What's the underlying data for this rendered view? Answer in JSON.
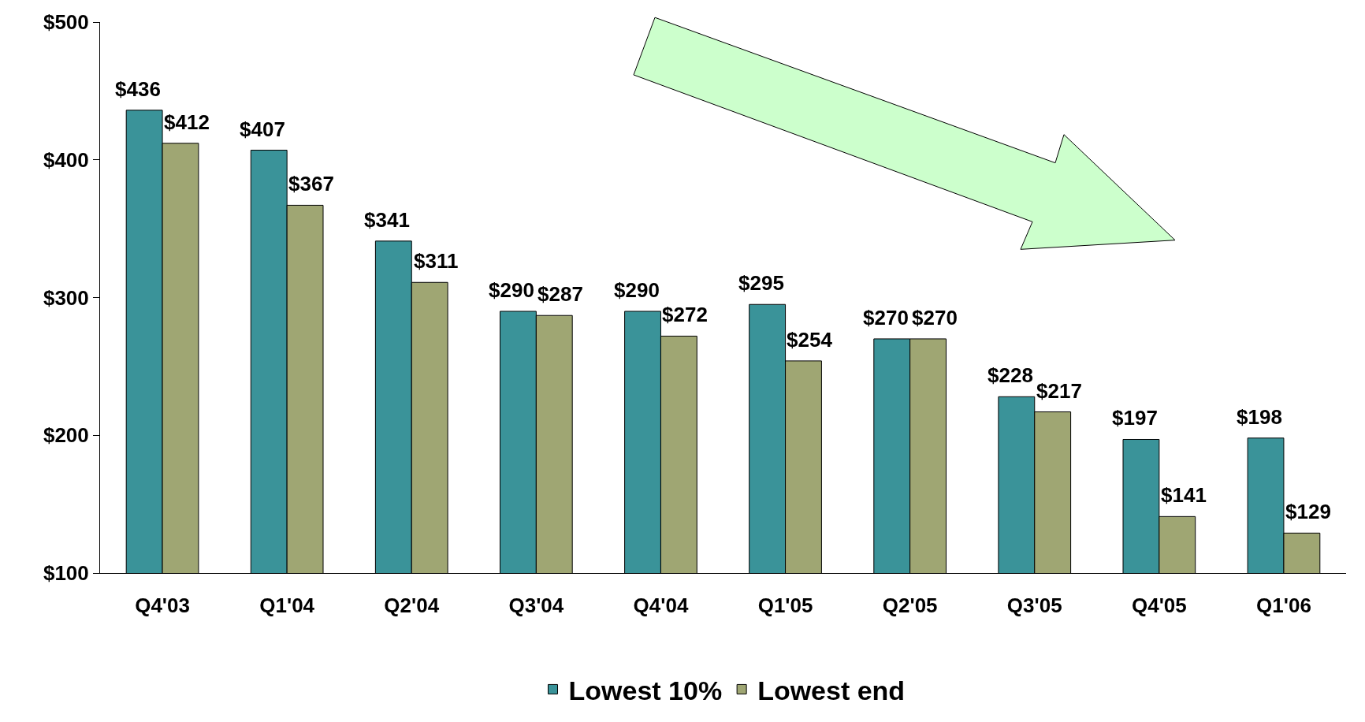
{
  "chart_data": {
    "type": "bar",
    "categories": [
      "Q4'03",
      "Q1'04",
      "Q2'04",
      "Q3'04",
      "Q4'04",
      "Q1'05",
      "Q2'05",
      "Q3'05",
      "Q4'05",
      "Q1'06"
    ],
    "series": [
      {
        "name": "Lowest 10%",
        "color": "#3a9399",
        "values": [
          436,
          407,
          341,
          290,
          290,
          295,
          270,
          228,
          197,
          198
        ],
        "value_labels": [
          "$436",
          "$407",
          "$341",
          "$290",
          "$290",
          "$295",
          "$270",
          "$228",
          "$197",
          "$198"
        ]
      },
      {
        "name": "Lowest end",
        "color": "#9fa673",
        "values": [
          412,
          367,
          311,
          287,
          272,
          254,
          270,
          217,
          141,
          129
        ],
        "value_labels": [
          "$412",
          "$367",
          "$311",
          "$287",
          "$272",
          "$254",
          "$270",
          "$217",
          "$141",
          "$129"
        ]
      }
    ],
    "ylim": [
      100,
      500
    ],
    "yticks": [
      {
        "value": 100,
        "label": "$100"
      },
      {
        "value": 200,
        "label": "$200"
      },
      {
        "value": 300,
        "label": "$300"
      },
      {
        "value": 400,
        "label": "$400"
      },
      {
        "value": 500,
        "label": "$500"
      }
    ],
    "legend": "bottom"
  }
}
